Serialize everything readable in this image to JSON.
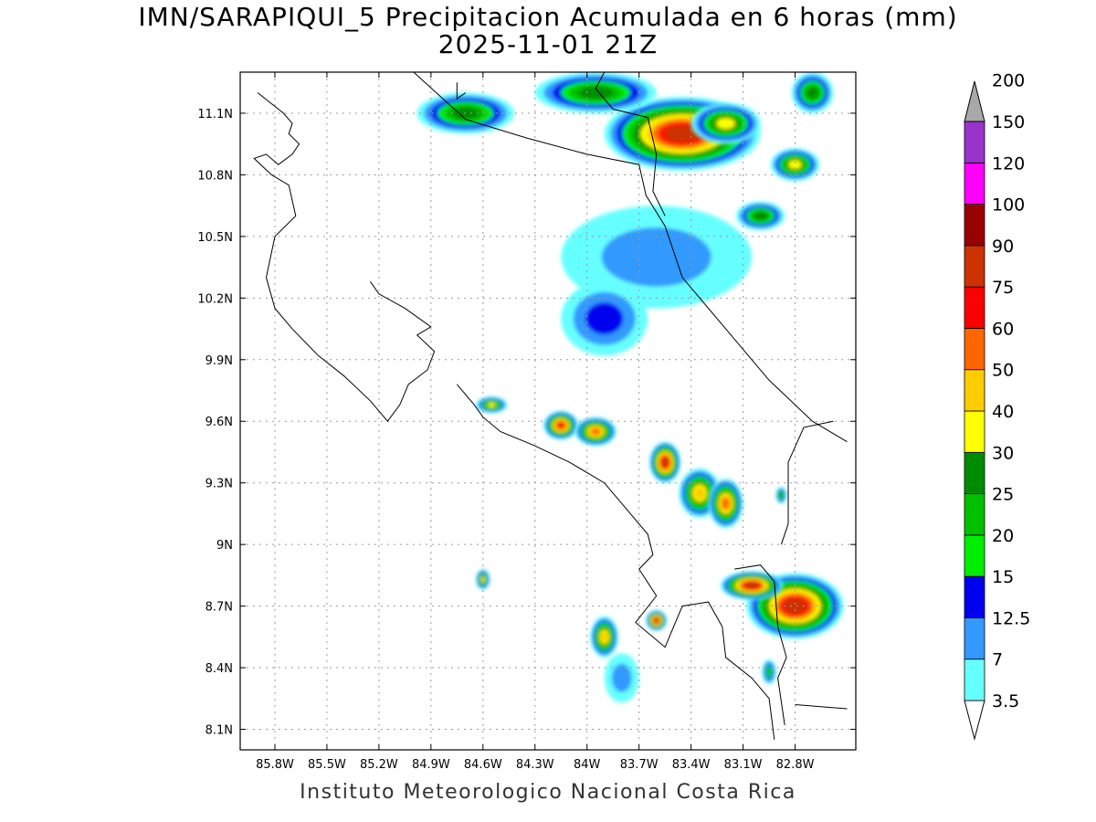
{
  "header": {
    "title": "IMN/SARAPIQUI_5 Precipitacion Acumulada en 6 horas (mm)",
    "subtitle": "2025-11-01 21Z"
  },
  "footer": {
    "credit": "Instituto Meteorologico Nacional Costa Rica"
  },
  "map": {
    "lon_range": [
      -86.0,
      -82.45
    ],
    "lat_range": [
      8.0,
      11.3
    ],
    "lat_ticks": [
      {
        "value": 11.1,
        "label": "11.1N"
      },
      {
        "value": 10.8,
        "label": "10.8N"
      },
      {
        "value": 10.5,
        "label": "10.5N"
      },
      {
        "value": 10.2,
        "label": "10.2N"
      },
      {
        "value": 9.9,
        "label": "9.9N"
      },
      {
        "value": 9.6,
        "label": "9.6N"
      },
      {
        "value": 9.3,
        "label": "9.3N"
      },
      {
        "value": 9.0,
        "label": "9N"
      },
      {
        "value": 8.7,
        "label": "8.7N"
      },
      {
        "value": 8.4,
        "label": "8.4N"
      },
      {
        "value": 8.1,
        "label": "8.1N"
      }
    ],
    "lon_ticks": [
      {
        "value": -85.8,
        "label": "85.8W"
      },
      {
        "value": -85.5,
        "label": "85.5W"
      },
      {
        "value": -85.2,
        "label": "85.2W"
      },
      {
        "value": -84.9,
        "label": "84.9W"
      },
      {
        "value": -84.6,
        "label": "84.6W"
      },
      {
        "value": -84.3,
        "label": "84.3W"
      },
      {
        "value": -84.0,
        "label": "84W"
      },
      {
        "value": -83.7,
        "label": "83.7W"
      },
      {
        "value": -83.4,
        "label": "83.4W"
      },
      {
        "value": -83.1,
        "label": "83.1W"
      },
      {
        "value": -82.8,
        "label": "82.8W"
      }
    ],
    "grid": true
  },
  "colorbar": {
    "levels": [
      {
        "label": "3.5",
        "color": "#66ffff"
      },
      {
        "label": "7",
        "color": "#3399ff"
      },
      {
        "label": "12.5",
        "color": "#0000ee"
      },
      {
        "label": "15",
        "color": "#00ee00"
      },
      {
        "label": "20",
        "color": "#00c000"
      },
      {
        "label": "25",
        "color": "#008c00"
      },
      {
        "label": "30",
        "color": "#ffff00"
      },
      {
        "label": "40",
        "color": "#ffcc00"
      },
      {
        "label": "50",
        "color": "#ff6600"
      },
      {
        "label": "60",
        "color": "#ff0000"
      },
      {
        "label": "75",
        "color": "#cc3300"
      },
      {
        "label": "90",
        "color": "#990000"
      },
      {
        "label": "100",
        "color": "#ff00ff"
      },
      {
        "label": "120",
        "color": "#9933cc"
      },
      {
        "label": "150",
        "color": "#f2f2f2"
      },
      {
        "label": "200",
        "color": "#a8a8a8"
      }
    ]
  },
  "precip_cells": [
    {
      "lon": -83.45,
      "lat": 11.0,
      "rx": 0.45,
      "ry": 0.18,
      "peak": 75
    },
    {
      "lon": -83.2,
      "lat": 11.05,
      "rx": 0.2,
      "ry": 0.1,
      "peak": 30
    },
    {
      "lon": -84.7,
      "lat": 11.1,
      "rx": 0.28,
      "ry": 0.1,
      "peak": 25
    },
    {
      "lon": -83.95,
      "lat": 11.2,
      "rx": 0.35,
      "ry": 0.1,
      "peak": 25
    },
    {
      "lon": -83.0,
      "lat": 10.6,
      "rx": 0.14,
      "ry": 0.07,
      "peak": 25
    },
    {
      "lon": -82.8,
      "lat": 10.85,
      "rx": 0.14,
      "ry": 0.08,
      "peak": 30
    },
    {
      "lon": -82.7,
      "lat": 11.2,
      "rx": 0.12,
      "ry": 0.1,
      "peak": 25
    },
    {
      "lon": -83.6,
      "lat": 10.4,
      "rx": 0.55,
      "ry": 0.25,
      "peak": 7
    },
    {
      "lon": -83.9,
      "lat": 10.1,
      "rx": 0.25,
      "ry": 0.18,
      "peak": 12.5
    },
    {
      "lon": -84.55,
      "lat": 9.68,
      "rx": 0.09,
      "ry": 0.04,
      "peak": 30
    },
    {
      "lon": -84.15,
      "lat": 9.58,
      "rx": 0.1,
      "ry": 0.07,
      "peak": 60
    },
    {
      "lon": -83.95,
      "lat": 9.55,
      "rx": 0.12,
      "ry": 0.07,
      "peak": 50
    },
    {
      "lon": -83.55,
      "lat": 9.4,
      "rx": 0.09,
      "ry": 0.1,
      "peak": 75
    },
    {
      "lon": -83.35,
      "lat": 9.25,
      "rx": 0.12,
      "ry": 0.12,
      "peak": 40
    },
    {
      "lon": -83.2,
      "lat": 9.2,
      "rx": 0.1,
      "ry": 0.12,
      "peak": 50
    },
    {
      "lon": -84.6,
      "lat": 8.83,
      "rx": 0.04,
      "ry": 0.05,
      "peak": 30
    },
    {
      "lon": -82.8,
      "lat": 8.7,
      "rx": 0.28,
      "ry": 0.16,
      "peak": 75
    },
    {
      "lon": -83.05,
      "lat": 8.8,
      "rx": 0.18,
      "ry": 0.07,
      "peak": 75
    },
    {
      "lon": -83.9,
      "lat": 8.55,
      "rx": 0.08,
      "ry": 0.1,
      "peak": 40
    },
    {
      "lon": -83.6,
      "lat": 8.63,
      "rx": 0.06,
      "ry": 0.05,
      "peak": 75
    },
    {
      "lon": -82.95,
      "lat": 8.38,
      "rx": 0.04,
      "ry": 0.06,
      "peak": 20
    },
    {
      "lon": -82.88,
      "lat": 9.24,
      "rx": 0.03,
      "ry": 0.04,
      "peak": 25
    },
    {
      "lon": -83.8,
      "lat": 8.35,
      "rx": 0.1,
      "ry": 0.12,
      "peak": 7
    }
  ],
  "coast_lines": [
    [
      [
        -85.9,
        11.2
      ],
      [
        -85.75,
        11.1
      ],
      [
        -85.7,
        11.05
      ],
      [
        -85.72,
        11.0
      ],
      [
        -85.66,
        10.95
      ],
      [
        -85.7,
        10.9
      ],
      [
        -85.78,
        10.85
      ],
      [
        -85.85,
        10.9
      ],
      [
        -85.92,
        10.88
      ],
      [
        -85.82,
        10.8
      ],
      [
        -85.72,
        10.75
      ],
      [
        -85.68,
        10.6
      ],
      [
        -85.8,
        10.5
      ],
      [
        -85.85,
        10.3
      ],
      [
        -85.8,
        10.15
      ],
      [
        -85.7,
        10.05
      ],
      [
        -85.55,
        9.92
      ],
      [
        -85.4,
        9.82
      ],
      [
        -85.25,
        9.7
      ],
      [
        -85.15,
        9.6
      ],
      [
        -85.08,
        9.68
      ],
      [
        -85.03,
        9.78
      ],
      [
        -84.92,
        9.85
      ],
      [
        -84.88,
        9.94
      ],
      [
        -84.98,
        10.02
      ],
      [
        -84.9,
        10.06
      ],
      [
        -85.05,
        10.15
      ],
      [
        -85.2,
        10.22
      ],
      [
        -85.25,
        10.28
      ]
    ],
    [
      [
        -84.75,
        9.78
      ],
      [
        -84.65,
        9.68
      ],
      [
        -84.6,
        9.62
      ],
      [
        -84.5,
        9.55
      ],
      [
        -84.3,
        9.48
      ],
      [
        -84.1,
        9.4
      ],
      [
        -83.9,
        9.3
      ],
      [
        -83.75,
        9.15
      ],
      [
        -83.65,
        9.05
      ],
      [
        -83.62,
        8.95
      ],
      [
        -83.7,
        8.88
      ],
      [
        -83.6,
        8.75
      ],
      [
        -83.72,
        8.62
      ],
      [
        -83.55,
        8.5
      ],
      [
        -83.5,
        8.6
      ],
      [
        -83.45,
        8.7
      ],
      [
        -83.3,
        8.72
      ],
      [
        -83.22,
        8.6
      ],
      [
        -83.2,
        8.45
      ],
      [
        -83.05,
        8.35
      ],
      [
        -82.95,
        8.25
      ],
      [
        -82.92,
        8.05
      ]
    ],
    [
      [
        -82.8,
        8.22
      ],
      [
        -82.5,
        8.2
      ]
    ],
    [
      [
        -85.0,
        11.3
      ],
      [
        -84.7,
        11.07
      ],
      [
        -84.35,
        10.98
      ],
      [
        -84.0,
        10.9
      ],
      [
        -83.7,
        10.85
      ],
      [
        -83.66,
        10.7
      ],
      [
        -83.55,
        10.55
      ],
      [
        -83.45,
        10.3
      ],
      [
        -83.2,
        10.05
      ],
      [
        -82.95,
        9.8
      ],
      [
        -82.7,
        9.6
      ],
      [
        -82.5,
        9.5
      ]
    ],
    [
      [
        -82.58,
        9.6
      ],
      [
        -82.75,
        9.57
      ],
      [
        -82.84,
        9.4
      ],
      [
        -82.84,
        9.1
      ],
      [
        -82.88,
        9.0
      ]
    ],
    [
      [
        -83.9,
        11.3
      ],
      [
        -83.95,
        11.22
      ],
      [
        -83.85,
        11.12
      ],
      [
        -83.65,
        11.08
      ],
      [
        -83.6,
        10.9
      ],
      [
        -83.62,
        10.72
      ],
      [
        -83.55,
        10.6
      ]
    ],
    [
      [
        -84.75,
        11.25
      ],
      [
        -84.75,
        11.17
      ],
      [
        -84.7,
        11.2
      ]
    ],
    [
      [
        -83.15,
        8.88
      ],
      [
        -83.0,
        8.9
      ],
      [
        -82.92,
        8.82
      ],
      [
        -82.9,
        8.6
      ],
      [
        -82.85,
        8.45
      ],
      [
        -82.9,
        8.35
      ],
      [
        -82.86,
        8.12
      ]
    ]
  ]
}
